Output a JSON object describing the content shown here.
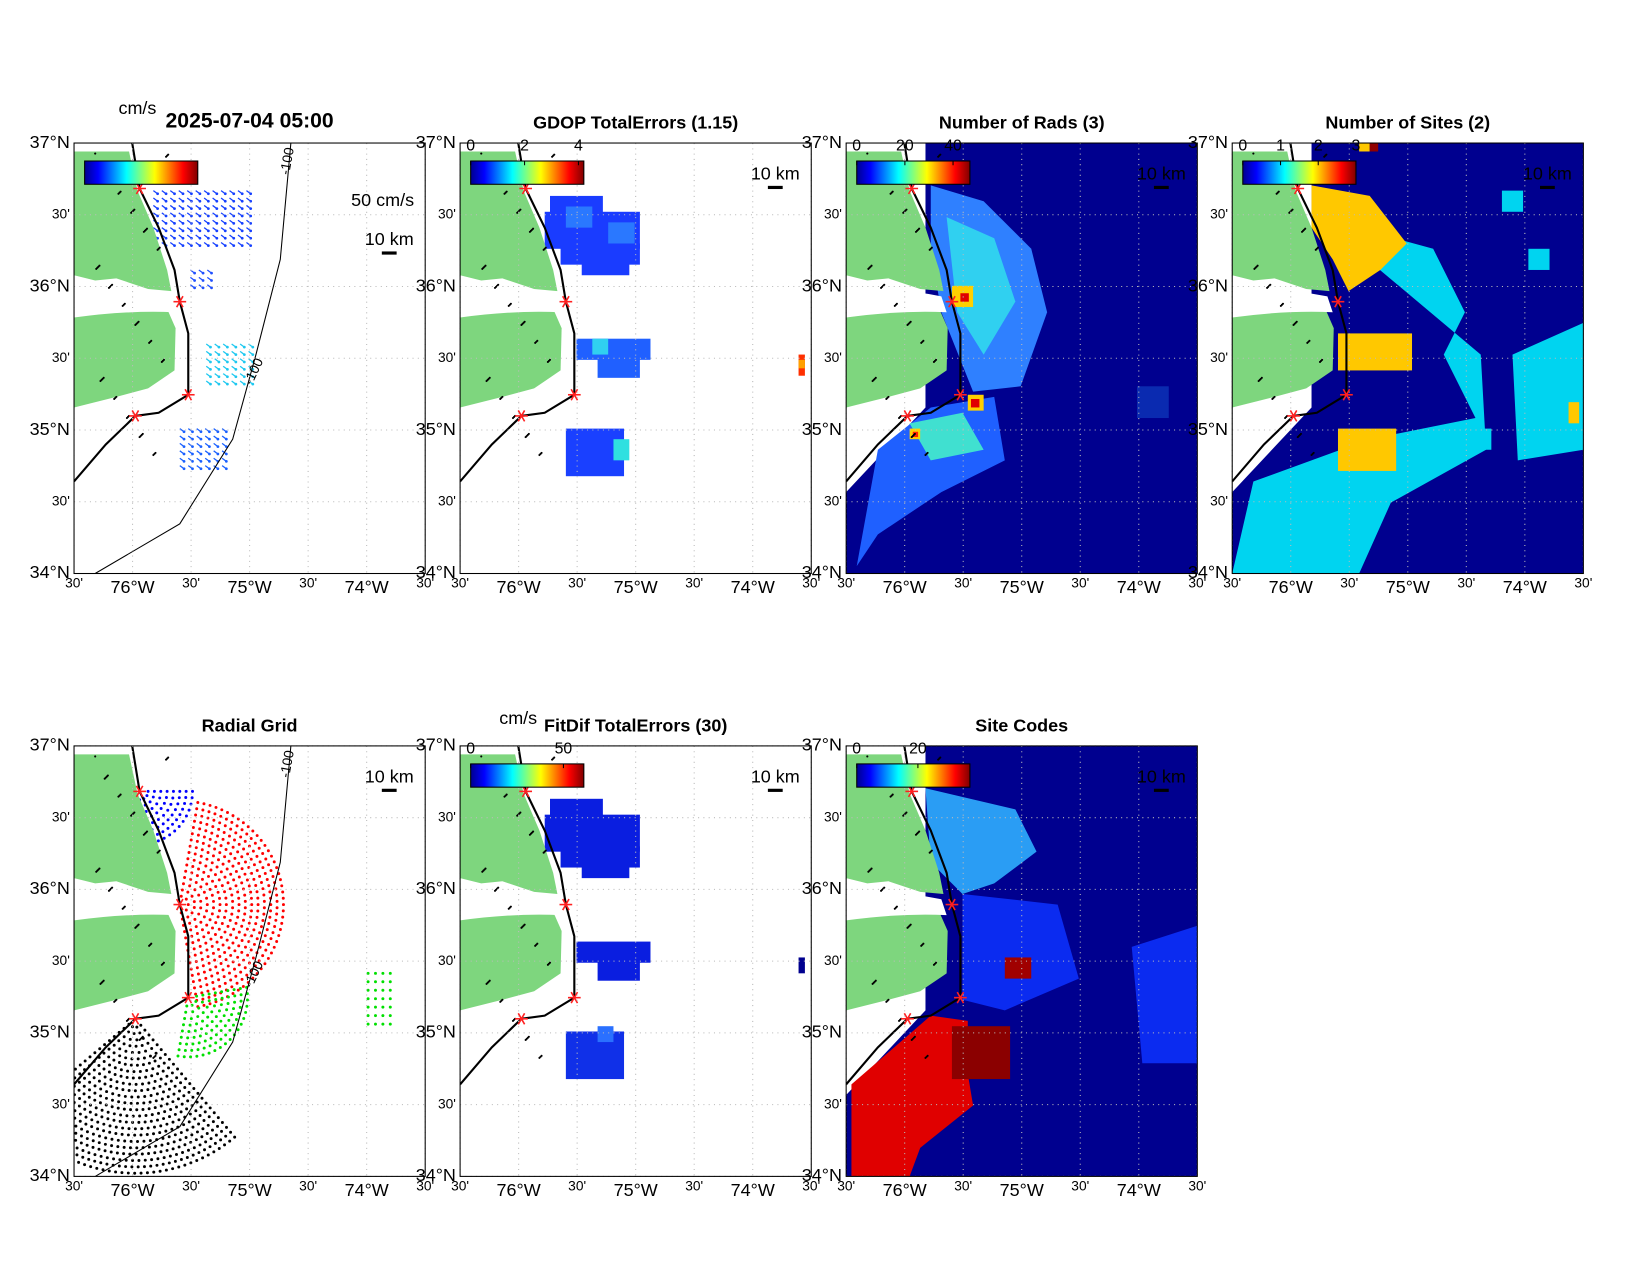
{
  "axes": {
    "lat_labels": [
      "37°N",
      "30'",
      "36°N",
      "30'",
      "35°N",
      "30'",
      "34°N"
    ],
    "lon_labels": [
      "30'",
      "76°W",
      "30'",
      "75°W",
      "30'",
      "74°W",
      "30'"
    ]
  },
  "panels": [
    {
      "title": "2025-07-04 05:00",
      "unit": "cm/s",
      "speed_scale": "50 cm/s",
      "distance_scale": "10 km",
      "contour_labels": [
        "-100",
        "-100"
      ]
    },
    {
      "title": "GDOP TotalErrors (1.15)",
      "colorbar": {
        "clim": [
          0,
          4.2
        ],
        "ticks": [
          0,
          2,
          4
        ]
      },
      "distance_scale": "10 km"
    },
    {
      "title": "Number of Rads (3)",
      "colorbar": {
        "clim": [
          0,
          47
        ],
        "ticks": [
          0,
          20,
          40
        ]
      },
      "distance_scale": "10 km"
    },
    {
      "title": "Number of Sites (2)",
      "colorbar": {
        "clim": [
          0,
          3
        ],
        "ticks": [
          0,
          1,
          2,
          3
        ]
      },
      "distance_scale": "10 km"
    },
    {
      "title": "Radial Grid",
      "distance_scale": "10 km",
      "contour_labels": [
        "-100",
        "-100"
      ]
    },
    {
      "title": "FitDif TotalErrors (30)",
      "unit": "cm/s",
      "colorbar": {
        "clim": [
          0,
          61
        ],
        "ticks": [
          0,
          50
        ]
      },
      "distance_scale": "10 km"
    },
    {
      "title": "Site Codes",
      "colorbar": {
        "clim": [
          0,
          37
        ],
        "ticks": [
          0,
          20
        ]
      },
      "distance_scale": "10 km"
    }
  ]
}
